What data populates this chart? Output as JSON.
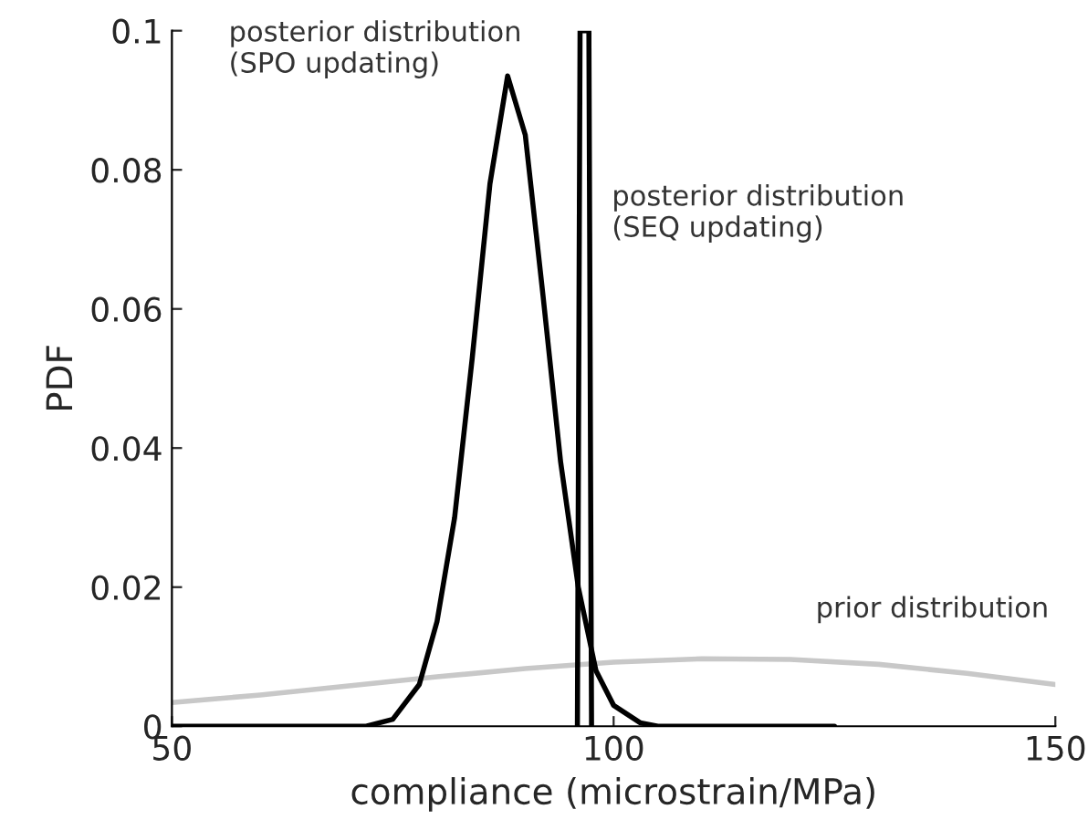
{
  "chart_data": {
    "type": "line",
    "xlabel": "compliance (microstrain/MPa)",
    "ylabel": "PDF",
    "xlim": [
      50,
      150
    ],
    "ylim": [
      0,
      0.1
    ],
    "xticks": [
      50,
      100,
      150
    ],
    "yticks": [
      0,
      0.02,
      0.04,
      0.06,
      0.08,
      0.1
    ],
    "grid": false,
    "marker": "none",
    "line_style": "solid",
    "series": [
      {
        "color": "#c8c8c8",
        "x": [
          50,
          60,
          70,
          80,
          90,
          100,
          110,
          120,
          130,
          140,
          150
        ],
        "values": [
          0.0034,
          0.0045,
          0.0058,
          0.0071,
          0.0083,
          0.0092,
          0.0097,
          0.0096,
          0.0089,
          0.0076,
          0.006
        ]
      },
      {
        "color": "#000000",
        "x": [
          50,
          72,
          75,
          78,
          80,
          82,
          84,
          86,
          88,
          90,
          92,
          94,
          96,
          98,
          100,
          103,
          105,
          125
        ],
        "values": [
          0,
          0,
          0.001,
          0.006,
          0.015,
          0.03,
          0.053,
          0.078,
          0.0935,
          0.085,
          0.062,
          0.038,
          0.02,
          0.008,
          0.003,
          0.0005,
          0,
          0
        ]
      },
      {
        "color": "#000000",
        "x": [
          95.9,
          96.2,
          97.2,
          97.5
        ],
        "values": [
          0,
          0.1,
          0.1,
          0
        ]
      }
    ],
    "annotations": [
      {
        "text": "posterior distribution\n(SPO updating)",
        "x": 88,
        "y": 0.0935
      },
      {
        "text": "posterior distribution\n(SEQ updating)",
        "x": 97.5,
        "y": 0.075
      },
      {
        "text": "prior distribution",
        "x": 120,
        "y": 0.0096
      }
    ]
  }
}
